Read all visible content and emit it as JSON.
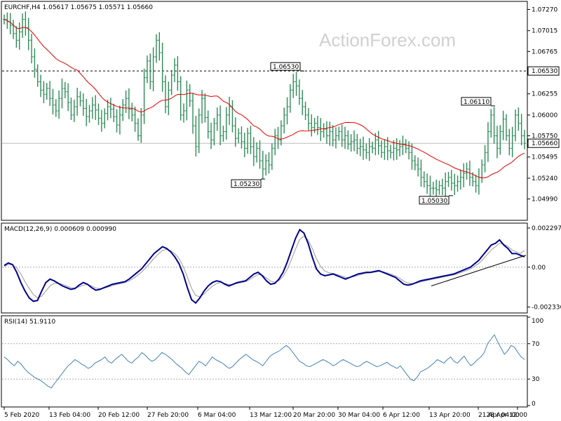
{
  "chart_data": [
    {
      "type": "bar",
      "subtype": "ohlc",
      "panel": "price",
      "header": "EURCHF,H4  1.05617 1.05675 1.05571 1.05660",
      "watermark": "ActionForex.com",
      "ylim": [
        1.0475,
        1.0735
      ],
      "y_ticks": [
        "1.07270",
        "1.07015",
        "1.06765",
        "1.06530",
        "1.06255",
        "1.06000",
        "1.05750",
        "1.05660",
        "1.05495",
        "1.05240",
        "1.04990"
      ],
      "current_price": "1.05660",
      "resistance_level": "1.06530",
      "annotations": [
        {
          "label": "1.06530",
          "x": "24 Mar",
          "y": 1.0653
        },
        {
          "label": "1.05230",
          "x": "17 Mar",
          "y": 1.0523
        },
        {
          "label": "1.06110",
          "x": "27 Apr",
          "y": 1.0611
        },
        {
          "label": "1.05030",
          "x": "17 Apr",
          "y": 1.0503
        }
      ],
      "moving_average_color": "#e00000",
      "bar_color": "#2e8b57",
      "series_close": [
        1.0715,
        1.0712,
        1.0708,
        1.0698,
        1.069,
        1.07,
        1.0715,
        1.0705,
        1.069,
        1.067,
        1.0655,
        1.064,
        1.063,
        1.0625,
        1.0632,
        1.062,
        1.0612,
        1.0605,
        1.062,
        1.0632,
        1.0628,
        1.0615,
        1.06,
        1.061,
        1.0622,
        1.0617,
        1.0608,
        1.0598,
        1.0605,
        1.0612,
        1.0606,
        1.0596,
        1.059,
        1.0602,
        1.061,
        1.0607,
        1.0598,
        1.0588,
        1.06,
        1.0612,
        1.062,
        1.0607,
        1.06,
        1.059,
        1.0575,
        1.06,
        1.0645,
        1.0665,
        1.064,
        1.067,
        1.069,
        1.0675,
        1.064,
        1.061,
        1.063,
        1.0648,
        1.066,
        1.064,
        1.06,
        1.0605,
        1.063,
        1.0617,
        1.0587,
        1.0562,
        1.06,
        1.062,
        1.0597,
        1.058,
        1.057,
        1.059,
        1.06,
        1.0575,
        1.058,
        1.06,
        1.061,
        1.0587,
        1.0572,
        1.0578,
        1.0568,
        1.056,
        1.0578,
        1.0562,
        1.055,
        1.056,
        1.0545,
        1.0535,
        1.0545,
        1.054,
        1.056,
        1.0575,
        1.057,
        1.0587,
        1.06,
        1.061,
        1.063,
        1.064,
        1.0635,
        1.062,
        1.061,
        1.06,
        1.059,
        1.0585,
        1.059,
        1.0585,
        1.058,
        1.0583,
        1.0575,
        1.058,
        1.057,
        1.0575,
        1.058,
        1.057,
        1.0575,
        1.0565,
        1.0568,
        1.057,
        1.056,
        1.0562,
        1.0558,
        1.0555,
        1.0562,
        1.056,
        1.057,
        1.0563,
        1.0555,
        1.0562,
        1.0557,
        1.0555,
        1.056,
        1.0558,
        1.0562,
        1.0565,
        1.056,
        1.0555,
        1.0545,
        1.054,
        1.0535,
        1.0525,
        1.052,
        1.0515,
        1.0512,
        1.0512,
        1.051,
        1.0515,
        1.0512,
        1.052,
        1.0525,
        1.0518,
        1.0515,
        1.052,
        1.0525,
        1.053,
        1.0535,
        1.0525,
        1.052,
        1.0515,
        1.0525,
        1.054,
        1.0555,
        1.058,
        1.06,
        1.0575,
        1.056,
        1.058,
        1.0595,
        1.0575,
        1.056,
        1.0575,
        1.06,
        1.059,
        1.0575,
        1.0566
      ]
    },
    {
      "type": "line",
      "panel": "macd",
      "header": "MACD(12,26,9) 0.000609 0.000990",
      "ylim": [
        -0.0026,
        0.0025
      ],
      "y_ticks": [
        "0.002297",
        "0.00",
        "-0.002336"
      ],
      "zero_level": 0.0,
      "series": [
        {
          "name": "MACD",
          "color": "#00008b",
          "values": [
            0.0001,
            0.00025,
            0.00015,
            -0.0003,
            -0.0009,
            -0.0014,
            -0.0018,
            -0.002,
            -0.00195,
            -0.0014,
            -0.0009,
            -0.0007,
            -0.0008,
            -0.00095,
            -0.0011,
            -0.0012,
            -0.0013,
            -0.00125,
            -0.00105,
            -0.0009,
            -0.001,
            -0.0012,
            -0.00135,
            -0.0013,
            -0.0012,
            -0.0011,
            -0.001,
            -0.00095,
            -0.0009,
            -0.00085,
            -0.0007,
            -0.0005,
            -0.0003,
            -0.0001,
            0.0002,
            0.0005,
            0.0008,
            0.001,
            0.0012,
            0.0011,
            0.0009,
            0.0006,
            0.0002,
            -0.0004,
            -0.0012,
            -0.0019,
            -0.0021,
            -0.0018,
            -0.0014,
            -0.0011,
            -0.0009,
            -0.0008,
            -0.00085,
            -0.001,
            -0.0011,
            -0.001,
            -0.0009,
            -0.00085,
            -0.0008,
            -0.0006,
            -0.0004,
            -0.0003,
            -0.0005,
            -0.0008,
            -0.001,
            -0.00095,
            -0.0007,
            -0.0003,
            0.0003,
            0.001,
            0.0017,
            0.0022,
            0.002,
            0.0014,
            0.0006,
            -0.0001,
            -0.0004,
            -0.0005,
            -0.00045,
            -0.0004,
            -0.0005,
            -0.0006,
            -0.0007,
            -0.0006,
            -0.0005,
            -0.0004,
            -0.00035,
            -0.0003,
            -0.0003,
            -0.00025,
            -0.0002,
            -0.0003,
            -0.0004,
            -0.0005,
            -0.0006,
            -0.0008,
            -0.001,
            -0.00105,
            -0.001,
            -0.0009,
            -0.0008,
            -0.00075,
            -0.0007,
            -0.00065,
            -0.0006,
            -0.00055,
            -0.0005,
            -0.00045,
            -0.0004,
            -0.0003,
            -0.0002,
            -0.0001,
            0.0,
            0.0002,
            0.0004,
            0.0007,
            0.001,
            0.0013,
            0.0014,
            0.0016,
            0.0013,
            0.0011,
            0.0008,
            0.0008,
            0.0007,
            0.00061
          ]
        },
        {
          "name": "Signal",
          "color": "#999999",
          "values": [
            5e-05,
            0.00015,
            0.00015,
            -5e-05,
            -0.0004,
            -0.00085,
            -0.00125,
            -0.0016,
            -0.0018,
            -0.0017,
            -0.0014,
            -0.0011,
            -0.00095,
            -0.00095,
            -0.001,
            -0.0011,
            -0.0012,
            -0.00122,
            -0.00115,
            -0.00105,
            -0.00102,
            -0.0011,
            -0.00122,
            -0.00126,
            -0.00123,
            -0.00116,
            -0.00108,
            -0.00101,
            -0.00096,
            -0.00091,
            -0.00081,
            -0.00066,
            -0.00048,
            -0.00029,
            -4e-05,
            0.00023,
            0.00052,
            0.00076,
            0.00098,
            0.00104,
            0.00097,
            0.00079,
            0.0005,
            5e-05,
            -0.00057,
            -0.00123,
            -0.00166,
            -0.00173,
            -0.00157,
            -0.00133,
            -0.00112,
            -0.00096,
            -0.0009,
            -0.00095,
            -0.00102,
            -0.00101,
            -0.00095,
            -0.0009,
            -0.00085,
            -0.00072,
            -0.00056,
            -0.00043,
            -0.00046,
            -0.00063,
            -0.00082,
            -0.00088,
            -0.00079,
            -0.00054,
            -0.00012,
            0.00044,
            0.00107,
            0.00163,
            0.00181,
            0.0016,
            0.0011,
            0.0005,
            5e-05,
            -0.00022,
            -0.00033,
            -0.00036,
            -0.00043,
            -0.00051,
            -0.0006,
            -0.0006,
            -0.00055,
            -0.00048,
            -0.00041,
            -0.00036,
            -0.00033,
            -0.00029,
            -0.00025,
            -0.00027,
            -0.00033,
            -0.00042,
            -0.00051,
            -0.00065,
            -0.00082,
            -0.00093,
            -0.00096,
            -0.00093,
            -0.00087,
            -0.00081,
            -0.00076,
            -0.0007,
            -0.00065,
            -0.0006,
            -0.00055,
            -0.0005,
            -0.00045,
            -0.00038,
            -0.00029,
            -0.0002,
            -0.0001,
            5e-05,
            0.00022,
            0.00046,
            0.00073,
            0.00101,
            0.0012,
            0.0014,
            0.00135,
            0.00123,
            0.00101,
            0.0009,
            0.0008,
            0.00099
          ]
        }
      ],
      "trendline": {
        "from": {
          "x": "16 Apr",
          "y": -0.0011
        },
        "to": {
          "x": "30 Apr",
          "y": 0.0007
        }
      }
    },
    {
      "type": "line",
      "panel": "rsi",
      "header": "RSI(14) 51.9110",
      "ylim": [
        0,
        100
      ],
      "y_ticks": [
        "100",
        "70",
        "30",
        "0"
      ],
      "levels": [
        70,
        30
      ],
      "series": [
        {
          "name": "RSI",
          "color": "#4682b4",
          "values": [
            55,
            52,
            48,
            45,
            50,
            47,
            42,
            38,
            35,
            32,
            30,
            28,
            25,
            22,
            20,
            25,
            30,
            35,
            40,
            45,
            48,
            52,
            50,
            47,
            45,
            42,
            44,
            48,
            50,
            52,
            55,
            50,
            48,
            52,
            55,
            58,
            54,
            50,
            48,
            52,
            55,
            60,
            57,
            53,
            50,
            52,
            56,
            60,
            58,
            55,
            52,
            48,
            45,
            42,
            38,
            35,
            40,
            45,
            50,
            48,
            45,
            50,
            55,
            52,
            50,
            48,
            45,
            42,
            44,
            48,
            52,
            55,
            58,
            55,
            52,
            50,
            48,
            45,
            50,
            55,
            58,
            60,
            62,
            65,
            68,
            65,
            60,
            55,
            50,
            48,
            45,
            44,
            46,
            48,
            50,
            52,
            50,
            48,
            45,
            47,
            50,
            52,
            50,
            48,
            46,
            44,
            45,
            48,
            50,
            48,
            46,
            44,
            45,
            47,
            49,
            46,
            44,
            42,
            45,
            40,
            35,
            30,
            28,
            32,
            38,
            40,
            42,
            45,
            48,
            52,
            50,
            48,
            52,
            55,
            50,
            48,
            52,
            56,
            50,
            45,
            48,
            52,
            55,
            60,
            70,
            75,
            80,
            72,
            65,
            58,
            62,
            68,
            66,
            60,
            55,
            52
          ]
        }
      ]
    }
  ],
  "x_axis_labels": [
    "5 Feb 2020",
    "13 Feb 04:00",
    "20 Feb 12:00",
    "27 Feb 20:00",
    "6 Mar 04:00",
    "13 Mar 12:00",
    "20 Mar 20:00",
    "30 Mar 04:00",
    "6 Apr 12:00",
    "13 Apr 20:00",
    "21 Apr 04:00",
    "28 Apr 12:00"
  ]
}
